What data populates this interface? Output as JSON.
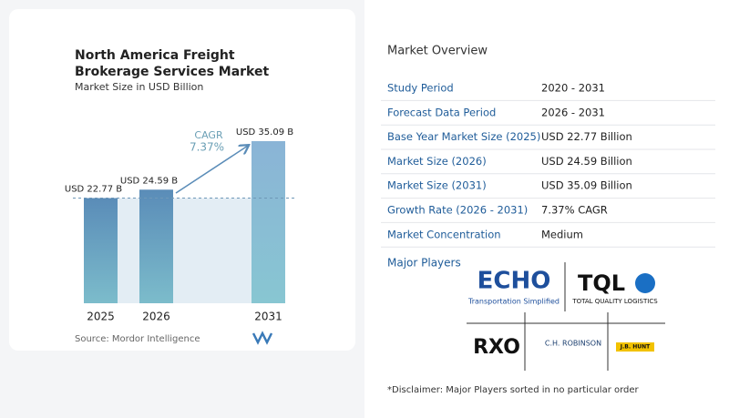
{
  "chart_data": {
    "type": "bar",
    "title": "North America Freight Brokerage Services Market",
    "subtitle": "Market Size in USD Billion",
    "categories": [
      "2025",
      "2026",
      "2031"
    ],
    "values": [
      22.77,
      24.59,
      35.09
    ],
    "value_labels": [
      "USD 22.77 B",
      "USD 24.59 B",
      "USD 35.09 B"
    ],
    "annotation_label": "CAGR",
    "annotation": "7.37%",
    "source": "Source: Mordor Intelligence",
    "color": "#5b8db8"
  },
  "overview": {
    "title": "Market Overview",
    "rows": [
      [
        "Study Period",
        "2020 - 2031"
      ],
      [
        "Forecast Data Period",
        "2026 - 2031"
      ],
      [
        "Base Year Market Size (2025)",
        "USD 22.77 Billion"
      ],
      [
        "Market Size (2026)",
        "USD 24.59 Billion"
      ],
      [
        "Market Size (2031)",
        "USD 35.09 Billion"
      ],
      [
        "Growth Rate (2026 - 2031)",
        "7.37% CAGR"
      ],
      [
        "Market Concentration",
        "Medium"
      ]
    ]
  },
  "players": {
    "title": "Major Players",
    "logos": [
      "ECHO",
      "Transportation Simplified",
      "TQL",
      "TOTAL QUALITY LOGISTICS",
      "RXO",
      "C.H. ROBINSON",
      "J.B. HUNT"
    ]
  },
  "disclaimer": "*Disclaimer: Major Players sorted in no particular order"
}
